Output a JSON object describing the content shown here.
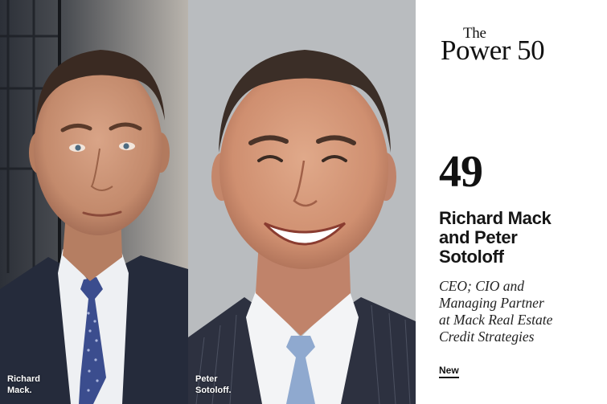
{
  "photos": {
    "left": {
      "caption_line1": "Richard",
      "caption_line2": "Mack."
    },
    "right": {
      "caption_line1": "Peter",
      "caption_line2": "Sotoloff."
    }
  },
  "brand": {
    "the": "The",
    "main": "Power 50"
  },
  "entry": {
    "rank": "49",
    "names": [
      "Richard Mack",
      "and Peter",
      "Sotoloff"
    ],
    "role": [
      "CEO; CIO and",
      "Managing Partner",
      "at Mack Real Estate",
      "Credit Strategies"
    ],
    "status": "New"
  },
  "colors": {
    "background": "#ffffff",
    "text": "#111111",
    "suit_navy": "#242a3a",
    "tie_blue": "#5a6fb4"
  }
}
